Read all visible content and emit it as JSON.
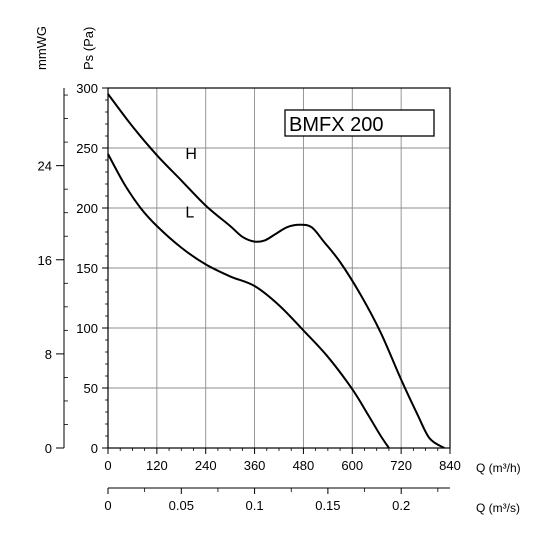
{
  "chart_data": {
    "type": "line",
    "title": "BMFX 200",
    "ylabel": "Ps (Pa)",
    "ylabel_secondary": "mmWG",
    "xlabel": "Q (m³/h)",
    "xlabel_secondary": "Q (m³/s)",
    "xlim": [
      0,
      840
    ],
    "ylim": [
      0,
      300
    ],
    "x_ticks": [
      "0",
      "120",
      "240",
      "360",
      "480",
      "600",
      "720",
      "840"
    ],
    "y_ticks": [
      "0",
      "50",
      "100",
      "150",
      "200",
      "250",
      "300"
    ],
    "y2_ticks": [
      {
        "label": "0",
        "value": 0
      },
      {
        "label": "8",
        "value": 8
      },
      {
        "label": "16",
        "value": 16
      },
      {
        "label": "24",
        "value": 24
      }
    ],
    "x2_ticks": [
      {
        "label": "0",
        "value": 0
      },
      {
        "label": "0.05",
        "value": 0.05
      },
      {
        "label": "0.1",
        "value": 0.1
      },
      {
        "label": "0.15",
        "value": 0.15
      },
      {
        "label": "0.2",
        "value": 0.2
      }
    ],
    "grid": true,
    "series": [
      {
        "name": "H",
        "label_at": [
          190,
          241
        ],
        "points": [
          [
            0,
            295
          ],
          [
            60,
            268
          ],
          [
            120,
            244
          ],
          [
            180,
            223
          ],
          [
            240,
            202
          ],
          [
            300,
            185
          ],
          [
            330,
            176
          ],
          [
            360,
            172
          ],
          [
            385,
            173
          ],
          [
            410,
            178
          ],
          [
            440,
            184
          ],
          [
            470,
            186
          ],
          [
            500,
            184
          ],
          [
            530,
            172
          ],
          [
            570,
            155
          ],
          [
            620,
            128
          ],
          [
            670,
            96
          ],
          [
            720,
            57
          ],
          [
            760,
            28
          ],
          [
            790,
            8
          ],
          [
            826,
            0
          ]
        ]
      },
      {
        "name": "L",
        "label_at": [
          190,
          192
        ],
        "points": [
          [
            0,
            245
          ],
          [
            40,
            220
          ],
          [
            80,
            200
          ],
          [
            120,
            185
          ],
          [
            180,
            167
          ],
          [
            240,
            153
          ],
          [
            300,
            143
          ],
          [
            360,
            135
          ],
          [
            420,
            119
          ],
          [
            480,
            98
          ],
          [
            540,
            76
          ],
          [
            600,
            49
          ],
          [
            640,
            27
          ],
          [
            670,
            10
          ],
          [
            690,
            0
          ]
        ]
      }
    ]
  }
}
